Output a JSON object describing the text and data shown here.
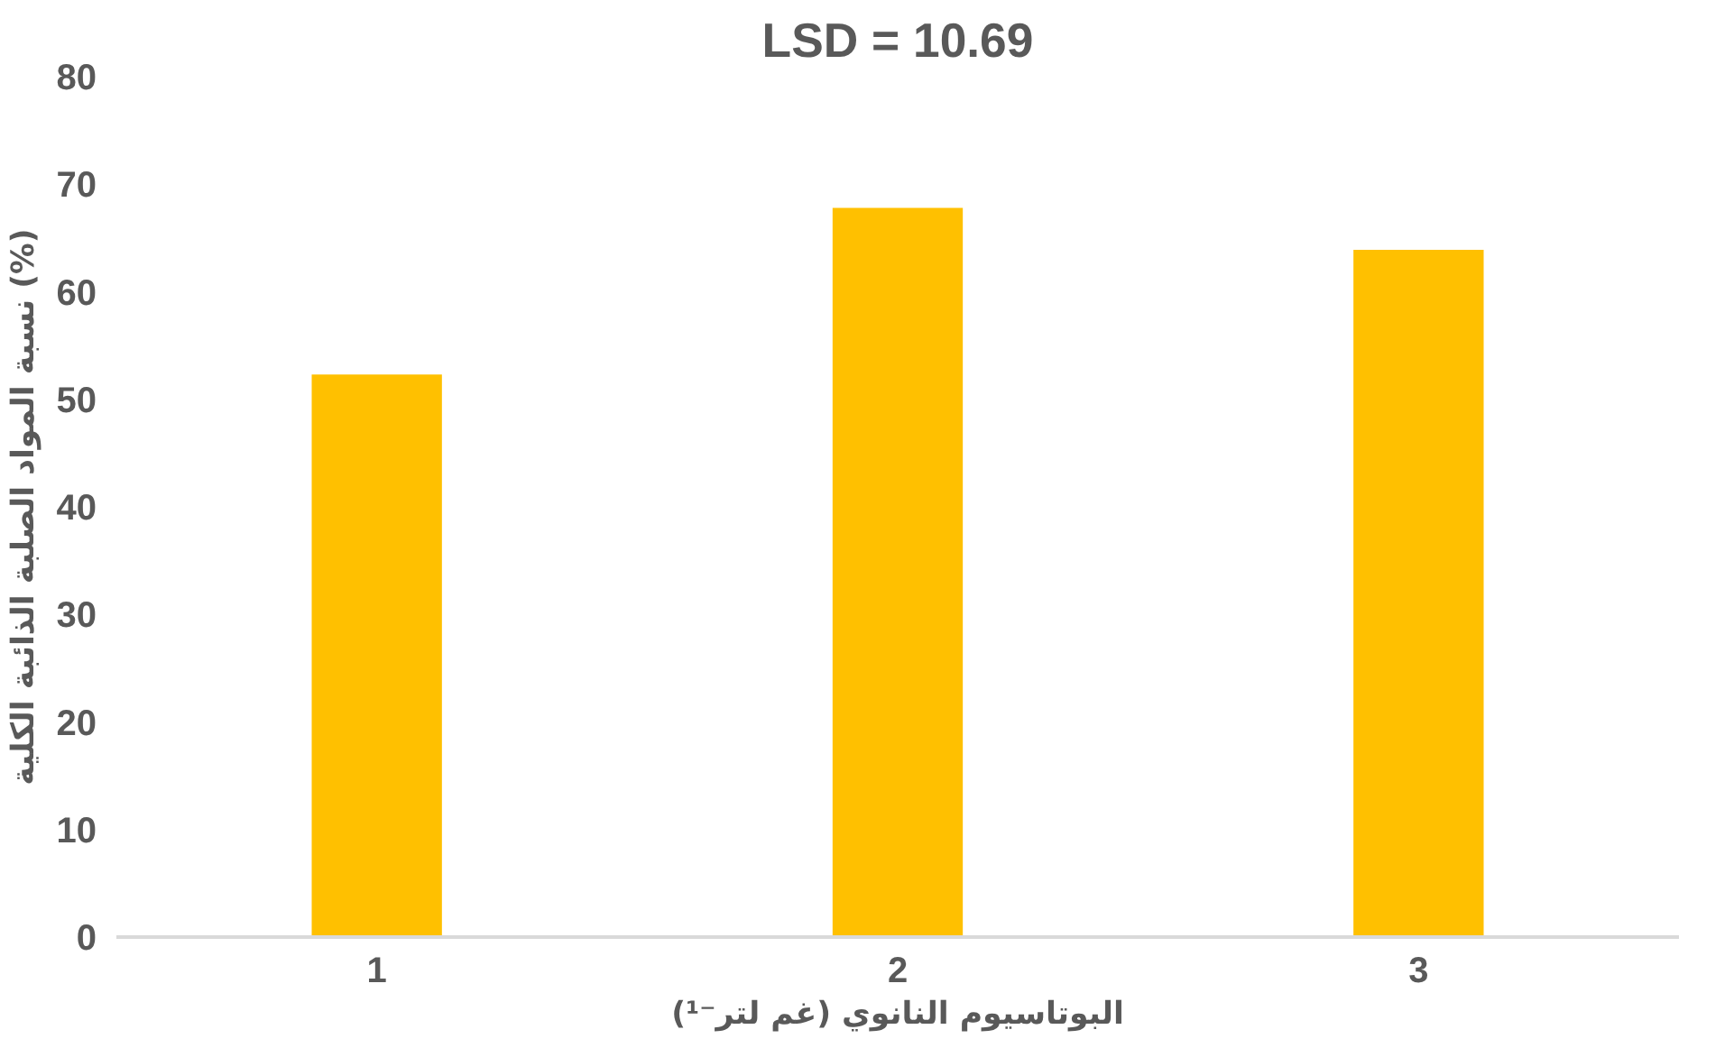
{
  "chart_data": {
    "type": "bar",
    "title": "LSD = 10.69",
    "xlabel": "البوتاسيوم النانوي (غم لتر⁻¹)",
    "ylabel": "نسبة المواد الصلبة الذائبة الكلية (%)",
    "categories": [
      "1",
      "2",
      "3"
    ],
    "values": [
      52.3,
      67.8,
      63.9
    ],
    "color": "#ffc000",
    "ylim": [
      0,
      80
    ],
    "yticks": [
      0,
      10,
      20,
      30,
      40,
      50,
      60,
      70,
      80
    ],
    "grid": false
  }
}
